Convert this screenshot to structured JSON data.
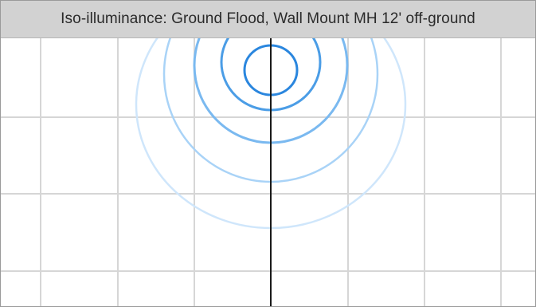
{
  "title": "Iso-illuminance: Ground Flood, Wall Mount MH 12' off-ground",
  "colors": {
    "title_bar_bg": "#d2d2d2",
    "grid_line": "#d6d6d6",
    "axis_line": "#1a1a1a",
    "contours": [
      "#cfe6fb",
      "#a9d3f7",
      "#7ab9f0",
      "#4b9de6",
      "#2a86de"
    ]
  },
  "diagram": {
    "type": "iso-illuminance-contours",
    "grid": true,
    "center_axis": "vertical",
    "contour_count": 5
  }
}
